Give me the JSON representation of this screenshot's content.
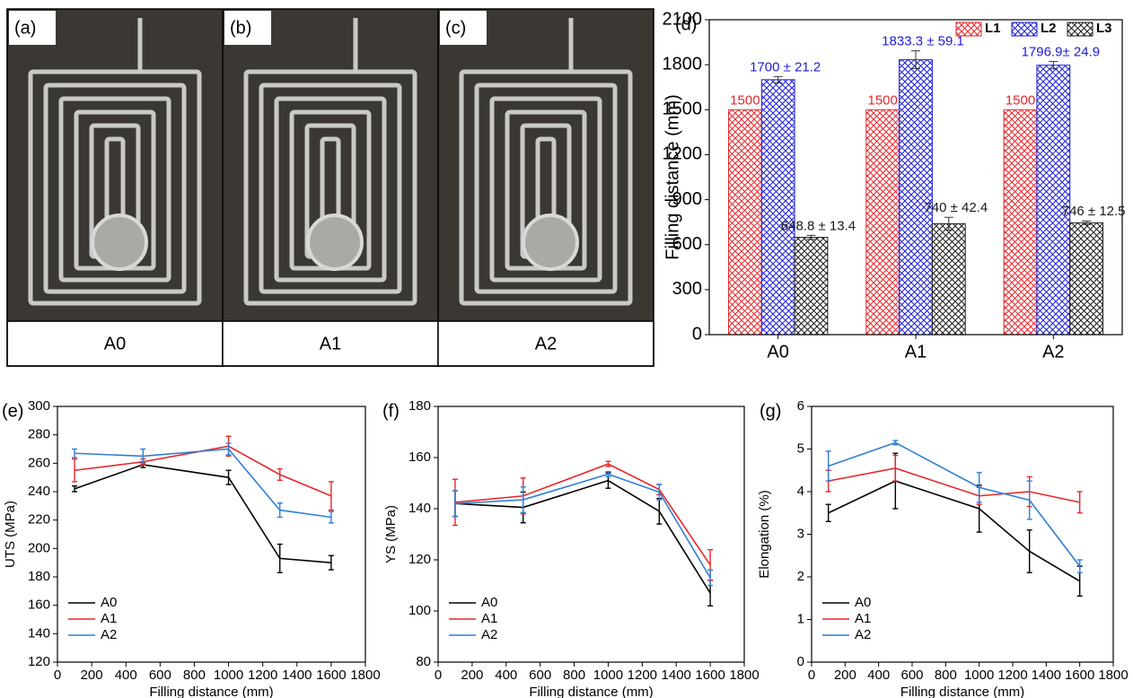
{
  "photos": [
    {
      "label": "(a)",
      "caption": "A0"
    },
    {
      "label": "(b)",
      "caption": "A1"
    },
    {
      "label": "(c)",
      "caption": "A2"
    }
  ],
  "chart_data": [
    {
      "type": "bar",
      "panel": "(d)",
      "categories": [
        "A0",
        "A1",
        "A2"
      ],
      "ylabel": "Filling distance (mm)",
      "ylim": [
        0,
        2100
      ],
      "yticks": [
        0,
        300,
        600,
        900,
        1200,
        1500,
        1800,
        2100
      ],
      "legend": "upper right",
      "series": [
        {
          "name": "L1",
          "color": "#e8262a",
          "values": [
            1500,
            1500,
            1500
          ]
        },
        {
          "name": "L2",
          "color": "#1c1cdc",
          "values": [
            1700,
            1833.3,
            1796.9
          ],
          "errors": [
            21.2,
            59.1,
            24.9
          ],
          "value_labels": [
            "1700 ± 21.2",
            "1833.3 ± 59.1",
            "1796.9± 24.9"
          ]
        },
        {
          "name": "L3",
          "color": "#1a1a1a",
          "values": [
            648.8,
            740,
            746
          ],
          "errors": [
            13.4,
            42.4,
            12.5
          ],
          "value_labels": [
            "648.8 ± 13.4",
            "740 ± 42.4",
            "746 ± 12.5"
          ]
        }
      ]
    },
    {
      "type": "line",
      "panel": "(e)",
      "xlabel": "Filling distance (mm)",
      "ylabel": "UTS (MPa)",
      "x": [
        100,
        500,
        1000,
        1300,
        1600
      ],
      "xlim": [
        0,
        1800
      ],
      "xticks": [
        0,
        200,
        400,
        600,
        800,
        1000,
        1200,
        1400,
        1600,
        1800
      ],
      "ylim": [
        120,
        300
      ],
      "yticks": [
        120,
        140,
        160,
        180,
        200,
        220,
        240,
        260,
        280,
        300
      ],
      "legend": "lower left",
      "series": [
        {
          "name": "A0",
          "color": "#000000",
          "values": [
            242,
            259,
            250,
            193,
            190
          ],
          "errors": [
            2,
            2,
            5,
            10,
            5
          ]
        },
        {
          "name": "A1",
          "color": "#e8262a",
          "values": [
            255,
            261,
            272,
            252,
            237
          ],
          "errors": [
            8,
            2,
            7,
            4,
            10
          ]
        },
        {
          "name": "A2",
          "color": "#2f7fd6",
          "values": [
            267,
            265,
            270,
            227,
            222
          ],
          "errors": [
            3,
            5,
            4,
            5,
            4
          ]
        }
      ]
    },
    {
      "type": "line",
      "panel": "(f)",
      "xlabel": "Filling distance (mm)",
      "ylabel": "YS (MPa)",
      "x": [
        100,
        500,
        1000,
        1300,
        1600
      ],
      "xlim": [
        0,
        1800
      ],
      "xticks": [
        0,
        200,
        400,
        600,
        800,
        1000,
        1200,
        1400,
        1600,
        1800
      ],
      "ylim": [
        80,
        180
      ],
      "yticks": [
        80,
        100,
        120,
        140,
        160,
        180
      ],
      "legend": "lower left",
      "series": [
        {
          "name": "A0",
          "color": "#000000",
          "values": [
            142,
            140.5,
            151,
            139,
            107
          ],
          "errors": [
            5,
            6,
            3,
            5,
            5
          ]
        },
        {
          "name": "A1",
          "color": "#e8262a",
          "values": [
            142.5,
            145,
            157.5,
            147.5,
            118
          ],
          "errors": [
            9,
            7,
            1,
            2,
            6
          ]
        },
        {
          "name": "A2",
          "color": "#2f7fd6",
          "values": [
            142,
            143.5,
            153.5,
            146.5,
            113
          ],
          "errors": [
            5,
            5,
            1,
            3,
            3
          ]
        }
      ]
    },
    {
      "type": "line",
      "panel": "(g)",
      "xlabel": "Filling distance (mm)",
      "ylabel": "Elongation (%)",
      "x": [
        100,
        500,
        1000,
        1300,
        1600
      ],
      "xlim": [
        0,
        1800
      ],
      "xticks": [
        0,
        200,
        400,
        600,
        800,
        1000,
        1200,
        1400,
        1600,
        1800
      ],
      "ylim": [
        0,
        6
      ],
      "yticks": [
        0,
        1,
        2,
        3,
        4,
        5,
        6
      ],
      "legend": "lower left",
      "series": [
        {
          "name": "A0",
          "color": "#000000",
          "values": [
            3.5,
            4.25,
            3.6,
            2.6,
            1.9
          ],
          "errors": [
            0.2,
            0.65,
            0.55,
            0.5,
            0.35
          ]
        },
        {
          "name": "A1",
          "color": "#e8262a",
          "values": [
            4.25,
            4.55,
            3.9,
            4.0,
            3.75
          ],
          "errors": [
            0.25,
            0.3,
            0.2,
            0.35,
            0.25
          ]
        },
        {
          "name": "A2",
          "color": "#2f7fd6",
          "values": [
            4.6,
            5.15,
            4.1,
            3.8,
            2.25
          ],
          "errors": [
            0.35,
            0.05,
            0.35,
            0.45,
            0.15
          ]
        }
      ]
    }
  ]
}
